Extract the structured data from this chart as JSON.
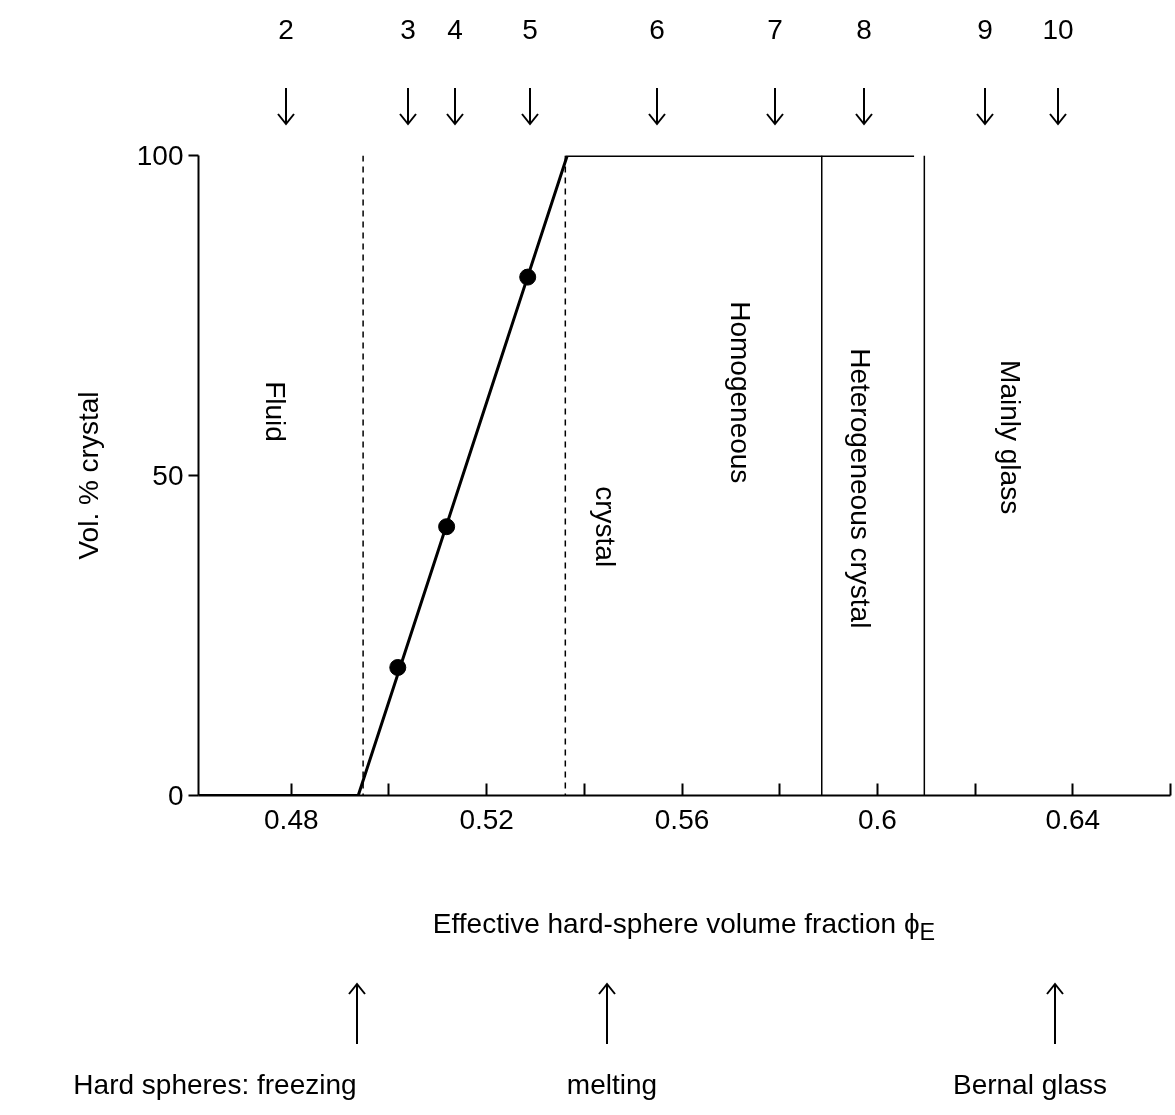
{
  "chart_data": {
    "type": "line",
    "xlabel": "Effective hard-sphere volume fraction ϕ$_{E}$",
    "ylabel": "Vol. % crystal",
    "xlim": [
      0.461,
      0.66
    ],
    "xticks": [
      0.48,
      {
        "value": 0.5,
        "label": null
      },
      0.52,
      {
        "value": 0.54,
        "label": null
      },
      0.56,
      {
        "value": 0.58,
        "label": null
      },
      0.6,
      {
        "value": 0.62,
        "label": null
      },
      0.64,
      {
        "value": 0.66,
        "label": null
      }
    ],
    "ylim": [
      0,
      100
    ],
    "yticks": [
      0,
      50,
      100
    ],
    "series": [
      {
        "color": "#000000",
        "x": [
          0.461,
          0.4937,
          0.5365,
          0.6075
        ],
        "values": [
          0,
          0,
          100,
          100
        ],
        "marker": "none"
      },
      {
        "type": "scatter",
        "color": "#000000",
        "x": [
          0.5018,
          0.5118,
          0.5284
        ],
        "values": [
          20,
          42,
          81
        ],
        "marker": "circle"
      }
    ],
    "ref_lines": [
      {
        "axis": "x",
        "value": 0.4947,
        "line_style": "dashed"
      },
      {
        "axis": "x",
        "value": 0.5361,
        "line_style": "dashed"
      },
      {
        "axis": "x",
        "value": 0.5886,
        "line_style": "solid"
      },
      {
        "axis": "x",
        "value": 0.6096,
        "line_style": "solid"
      }
    ],
    "annotations": [
      "Fluid",
      "crystal",
      "Homogeneous",
      "Heterogeneous crystal",
      "Mainly glass",
      "Hard spheres: freezing",
      "melting",
      "Bernal glass",
      "2",
      "3",
      "4",
      "5",
      "6",
      "7",
      "8",
      "9",
      "10"
    ],
    "grid": false
  }
}
